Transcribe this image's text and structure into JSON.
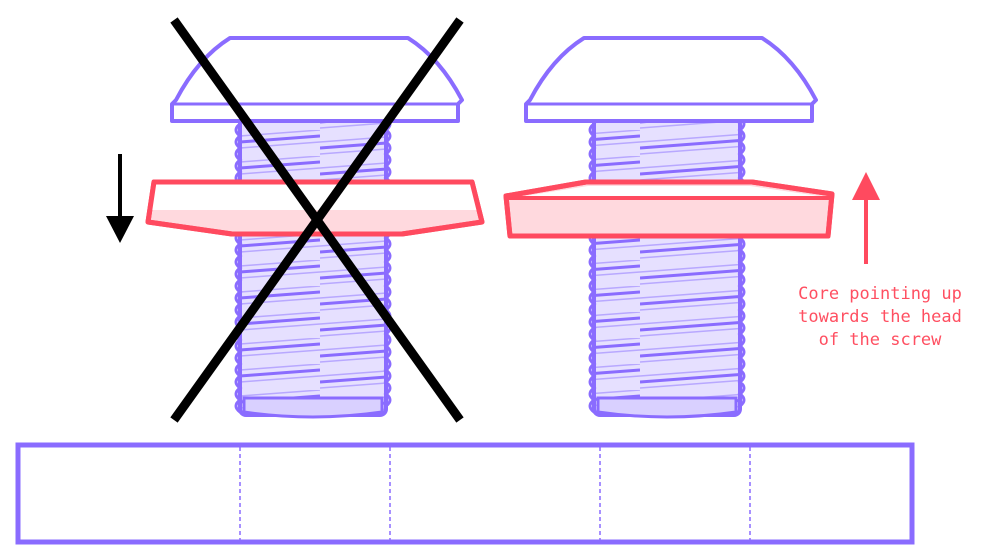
{
  "annotation": {
    "lines": [
      "Core pointing up",
      "towards the head",
      "of the screw"
    ]
  },
  "colors": {
    "screw_stroke": "#8a6cff",
    "screw_fill": "#e4deff",
    "washer_stroke": "#ff4a5f",
    "washer_fill": "#ffd9de",
    "cross_mark": "#000000",
    "down_arrow": "#000000",
    "up_arrow": "#ff4a5f",
    "base_stroke": "#8a6cff"
  },
  "icons": {
    "wrong_marker": "x-cross-icon",
    "down_arrow": "arrow-down-icon",
    "up_arrow": "arrow-up-icon"
  }
}
